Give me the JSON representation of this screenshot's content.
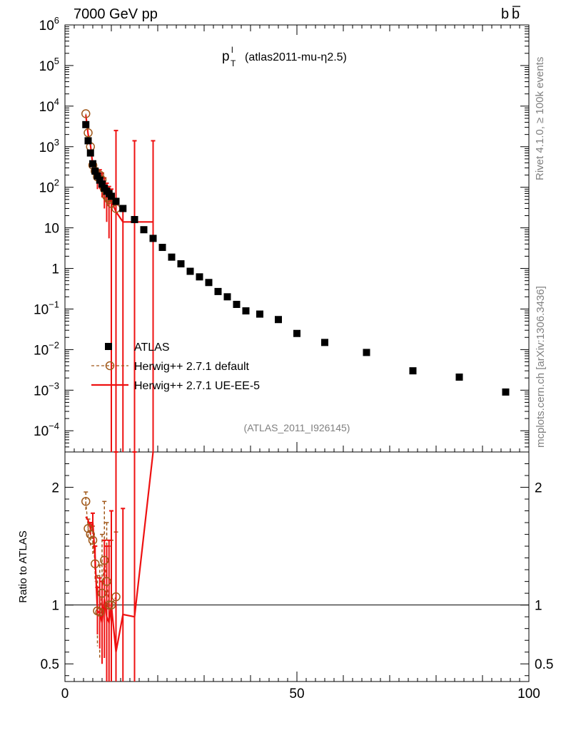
{
  "header": {
    "left": "7000 GeV pp",
    "right": "b"
  },
  "title": {
    "main": "p",
    "sup": "l",
    "sub": "T",
    "rest": "(atlas2011-mu-η2.5)"
  },
  "side_labels": {
    "rivet": "Rivet 4.1.0, ≥ 100k events",
    "mcplots": "mcplots.cern.ch [arXiv:1306.3436]"
  },
  "analysis_tag": "(ATLAS_2011_I926145)",
  "ratio_ylabel": "Ratio to ATLAS",
  "legend": {
    "atlas": "ATLAS",
    "herwig_default": "Herwig++ 2.7.1 default",
    "herwig_ue": "Herwig++ 2.7.1 UE-EE-5"
  },
  "colors": {
    "atlas": "#000000",
    "herwig_default": "#a0581a",
    "herwig_ue": "#ee1111"
  },
  "chart_data": [
    {
      "type": "scatter",
      "title": "",
      "yscale": "log",
      "xlim": [
        0,
        100
      ],
      "ylim": [
        3e-05,
        1000000
      ],
      "y_ticks": [
        {
          "v": 1000000,
          "base": "10",
          "exp": "6"
        },
        {
          "v": 100000,
          "base": "10",
          "exp": "5"
        },
        {
          "v": 10000,
          "base": "10",
          "exp": "4"
        },
        {
          "v": 1000,
          "base": "10",
          "exp": "3"
        },
        {
          "v": 100,
          "base": "10",
          "exp": "2"
        },
        {
          "v": 10,
          "base": "10",
          "exp": ""
        },
        {
          "v": 1,
          "base": "1",
          "exp": ""
        },
        {
          "v": 0.1,
          "base": "10",
          "exp": "−1"
        },
        {
          "v": 0.01,
          "base": "10",
          "exp": "−2"
        },
        {
          "v": 0.001,
          "base": "10",
          "exp": "−3"
        },
        {
          "v": 0.0001,
          "base": "10",
          "exp": "−4"
        }
      ],
      "series": [
        {
          "name": "ATLAS",
          "style": "markers-square",
          "x": [
            4.5,
            5.0,
            5.5,
            6.0,
            6.5,
            7.0,
            7.5,
            8.0,
            8.5,
            9.0,
            9.5,
            10.0,
            11.0,
            12.5,
            15.0,
            17.0,
            19.0,
            21.0,
            23.0,
            25.0,
            27.0,
            29.0,
            31.0,
            33.0,
            35.0,
            37.0,
            39.0,
            42.0,
            46.0,
            50.0,
            56.0,
            65.0,
            75.0,
            85.0,
            95.0
          ],
          "y": [
            3500,
            1400,
            700,
            380,
            250,
            190,
            150,
            120,
            95,
            80,
            70,
            60,
            45,
            30,
            16,
            9,
            5.5,
            3.3,
            1.9,
            1.3,
            0.85,
            0.62,
            0.45,
            0.27,
            0.2,
            0.13,
            0.09,
            0.075,
            0.055,
            0.025,
            0.015,
            0.0085,
            0.003,
            0.0021,
            0.0009
          ]
        },
        {
          "name": "Herwig++ 2.7.1 default",
          "style": "dashed-circles",
          "x": [
            4.5,
            5.0,
            5.5,
            6.0,
            6.5,
            7.0,
            7.5,
            8.0,
            8.5,
            9.0,
            9.5,
            10.0,
            11.0
          ],
          "y": [
            6500,
            2200,
            1000,
            350,
            250,
            180,
            200,
            150,
            90,
            60,
            50,
            40,
            30
          ]
        },
        {
          "name": "Herwig++ 2.7.1 UE-EE-5",
          "style": "step-line",
          "x": [
            4.5,
            5.0,
            5.5,
            6.0,
            6.5,
            7.0,
            7.5,
            8.0,
            8.5,
            9.0,
            9.5,
            10.0,
            11.0,
            12.5,
            15.0,
            19.0
          ],
          "y": [
            6000,
            2000,
            1100,
            350,
            250,
            150,
            180,
            140,
            100,
            70,
            55,
            45,
            25,
            14,
            14,
            14
          ]
        }
      ]
    },
    {
      "type": "line",
      "ylabel": "Ratio to ATLAS",
      "xlim": [
        0,
        100
      ],
      "ylim": [
        0.35,
        2.3
      ],
      "x_ticks": [
        0,
        50,
        100
      ],
      "y_ticks": [
        0.5,
        1,
        2
      ],
      "reference": 1,
      "series": [
        {
          "name": "Herwig++ 2.7.1 default",
          "x": [
            4.5,
            5.0,
            5.5,
            6.0,
            6.5,
            7.0,
            7.5,
            8.0,
            8.5,
            9.0,
            9.5,
            10.0,
            11.0
          ],
          "y": [
            1.88,
            1.65,
            1.6,
            1.55,
            1.35,
            0.95,
            0.94,
            1.1,
            1.38,
            1.2,
            1.0,
            1.0,
            1.07
          ]
        },
        {
          "name": "Herwig++ 2.7.1 UE-EE-5",
          "x": [
            4.5,
            5.0,
            5.5,
            6.0,
            6.5,
            7.0,
            7.5,
            8.0,
            8.5,
            9.0,
            9.5,
            10.0,
            11.0,
            12.5,
            15.0,
            19.0
          ],
          "y": [
            1.75,
            1.72,
            1.65,
            1.7,
            1.4,
            0.95,
            0.93,
            0.85,
            1.05,
            0.9,
            0.85,
            1.0,
            0.6,
            0.92,
            0.9,
            2.3
          ]
        }
      ]
    }
  ]
}
